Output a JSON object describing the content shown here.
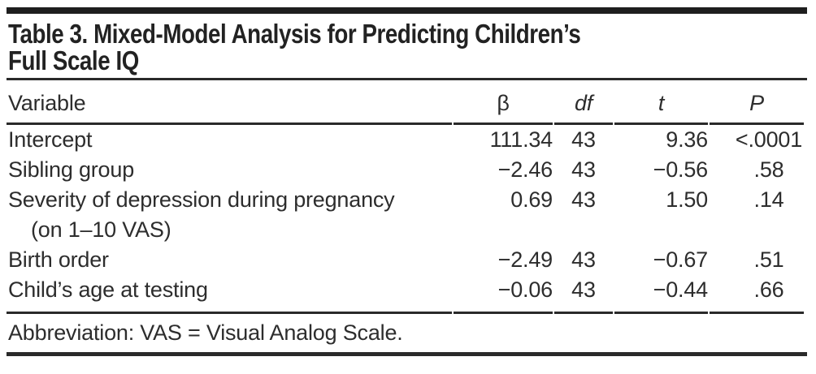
{
  "colors": {
    "bar": "#1e1e1e",
    "rule": "#2a2a2a",
    "text": "#2d2d2d",
    "background": "#ffffff"
  },
  "table": {
    "title_line1": "Table 3. Mixed-Model Analysis for Predicting Children’s",
    "title_line2": "Full Scale IQ",
    "columns": [
      "Variable",
      "β",
      "df",
      "t",
      "P"
    ],
    "rows": [
      {
        "variable": "Intercept",
        "beta": "111.34",
        "df": "43",
        "t": "9.36",
        "p": "<.0001"
      },
      {
        "variable": "Sibling group",
        "beta": "−2.46",
        "df": "43",
        "t": "−0.56",
        "p": ".58"
      },
      {
        "variable": "Severity of depression during pregnancy",
        "variable_line2": "(on 1–10 VAS)",
        "beta": "0.69",
        "df": "43",
        "t": "1.50",
        "p": ".14"
      },
      {
        "variable": "Birth order",
        "beta": "−2.49",
        "df": "43",
        "t": "−0.67",
        "p": ".51"
      },
      {
        "variable": "Child’s age at testing",
        "beta": "−0.06",
        "df": "43",
        "t": "−0.44",
        "p": ".66"
      }
    ],
    "footnote": "Abbreviation: VAS = Visual Analog Scale."
  }
}
